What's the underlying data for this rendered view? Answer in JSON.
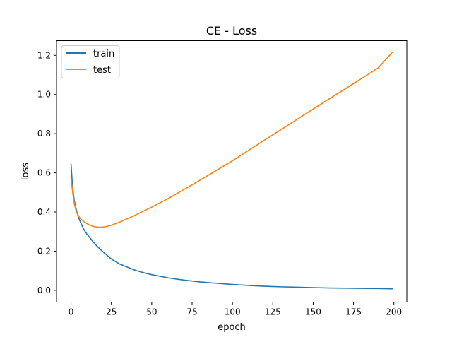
{
  "chart_data": {
    "type": "line",
    "title": "CE - Loss",
    "xlabel": "epoch",
    "ylabel": "loss",
    "xlim": [
      -9,
      208
    ],
    "ylim": [
      -0.06,
      1.275
    ],
    "xticks": [
      0,
      25,
      50,
      75,
      100,
      125,
      150,
      175,
      200
    ],
    "xtick_labels": [
      "0",
      "25",
      "50",
      "75",
      "100",
      "125",
      "150",
      "175",
      "200"
    ],
    "yticks": [
      0.0,
      0.2,
      0.4,
      0.6,
      0.8,
      1.0,
      1.2
    ],
    "ytick_labels": [
      "0.0",
      "0.2",
      "0.4",
      "0.6",
      "0.8",
      "1.0",
      "1.2"
    ],
    "grid": false,
    "legend_position": "upper-left",
    "series": [
      {
        "name": "train",
        "color": "#1f77b4",
        "x": [
          0,
          1,
          2,
          3,
          4,
          5,
          6,
          8,
          10,
          12,
          15,
          18,
          20,
          25,
          30,
          35,
          40,
          45,
          50,
          60,
          70,
          80,
          90,
          100,
          110,
          120,
          130,
          140,
          150,
          160,
          170,
          180,
          190,
          199
        ],
        "y": [
          0.645,
          0.52,
          0.46,
          0.42,
          0.39,
          0.365,
          0.345,
          0.31,
          0.285,
          0.265,
          0.235,
          0.21,
          0.195,
          0.16,
          0.135,
          0.118,
          0.102,
          0.09,
          0.08,
          0.064,
          0.052,
          0.043,
          0.036,
          0.03,
          0.025,
          0.021,
          0.018,
          0.016,
          0.014,
          0.012,
          0.011,
          0.01,
          0.009,
          0.008
        ]
      },
      {
        "name": "test",
        "color": "#ff7f0e",
        "x": [
          0,
          1,
          2,
          3,
          4,
          5,
          6,
          8,
          10,
          12,
          14,
          16,
          18,
          20,
          22,
          25,
          30,
          35,
          40,
          50,
          60,
          70,
          80,
          90,
          100,
          110,
          120,
          130,
          140,
          150,
          160,
          170,
          180,
          190,
          199
        ],
        "y": [
          0.575,
          0.5,
          0.445,
          0.41,
          0.39,
          0.375,
          0.365,
          0.35,
          0.34,
          0.332,
          0.326,
          0.323,
          0.322,
          0.323,
          0.326,
          0.333,
          0.348,
          0.366,
          0.385,
          0.425,
          0.468,
          0.515,
          0.563,
          0.612,
          0.662,
          0.715,
          0.768,
          0.82,
          0.873,
          0.926,
          0.978,
          1.03,
          1.082,
          1.134,
          1.215
        ]
      }
    ]
  }
}
